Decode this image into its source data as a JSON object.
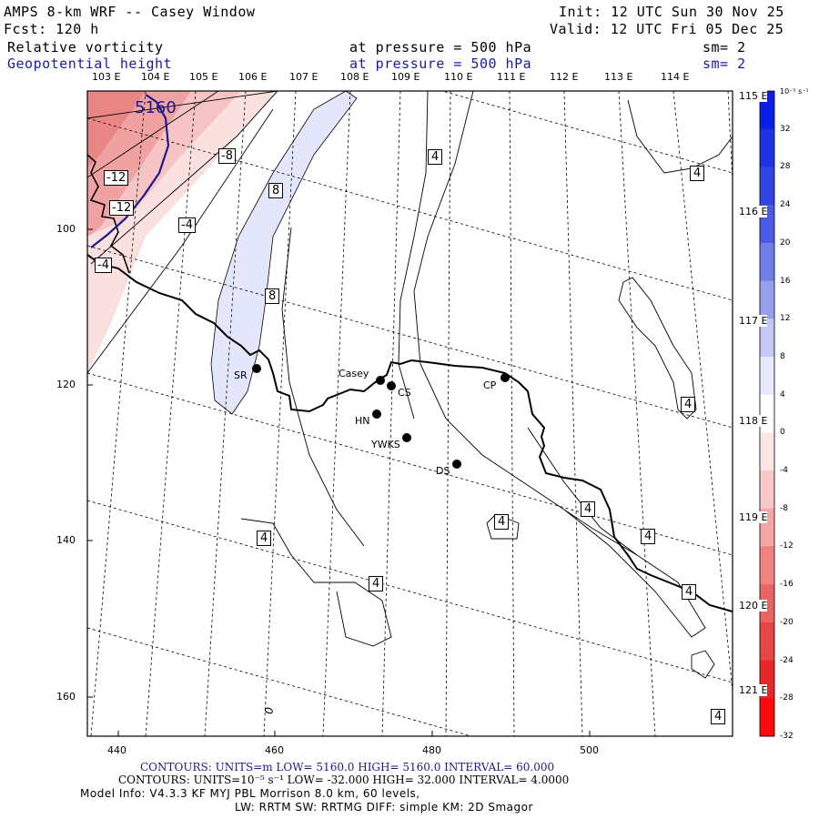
{
  "header": {
    "title": "AMPS 8-km WRF -- Casey Window",
    "fcst": "Fcst:  120 h",
    "init": "Init: 12 UTC Sun 30 Nov 25",
    "valid": "Valid: 12 UTC Fri 05 Dec 25",
    "field1_name": "Relative vorticity",
    "field1_level": "at pressure =  500 hPa",
    "field1_sm": "sm= 2",
    "field2_name": "Geopotential height",
    "field2_level": "at pressure =  500 hPa",
    "field2_sm": "sm= 2"
  },
  "map": {
    "x_ticks": [
      "440",
      "460",
      "480",
      "500"
    ],
    "y_ticks": [
      "100",
      "120",
      "140",
      "160"
    ],
    "lon_labels_top": [
      "103 E",
      "104 E",
      "105 E",
      "106 E",
      "107 E",
      "108 E",
      "109 E",
      "110 E",
      "111 E",
      "112 E",
      "113 E",
      "114 E"
    ],
    "lon_labels_right": [
      "115 E",
      "116 E",
      "117 E",
      "118 E",
      "119 E",
      "120 E",
      "121 E"
    ],
    "stations": [
      {
        "name": "SR"
      },
      {
        "name": "Casey"
      },
      {
        "name": "CS"
      },
      {
        "name": "CP"
      },
      {
        "name": "HN"
      },
      {
        "name": "YWKS"
      },
      {
        "name": "DS"
      }
    ],
    "contour_labels": {
      "height": "5160",
      "vort_neg12a": "-12",
      "vort_neg12b": "-12",
      "vort_neg8": "-8",
      "vort_neg4a": "-4",
      "vort_neg4b": "-4",
      "vort_8a": "8",
      "vort_8b": "8",
      "vort_4": [
        "4",
        "4",
        "4",
        "4",
        "4",
        "4",
        "4",
        "4",
        "4",
        "4"
      ],
      "zero": "0"
    }
  },
  "colorbar": {
    "units": "10⁻⁵ s⁻¹",
    "levels": [
      "32",
      "28",
      "24",
      "20",
      "16",
      "12",
      "8",
      "4",
      "0",
      "-4",
      "-8",
      "-12",
      "-16",
      "-20",
      "-24",
      "-28",
      "-32"
    ],
    "colors": [
      "#0a1ee6",
      "#1e32e6",
      "#3246e6",
      "#4b5ae6",
      "#6e7ee6",
      "#969fee",
      "#c3c8f5",
      "#e6e9fb",
      "#ffffff",
      "#fbe6e6",
      "#f8c8c8",
      "#f5a5a5",
      "#f08282",
      "#eb6464",
      "#e64646",
      "#e62828",
      "#ff0a0a"
    ]
  },
  "footer": {
    "line1": "CONTOURS:  UNITS=m  LOW=  5160.0          HIGH=  5160.0        INTERVAL=   60.000",
    "line2": "CONTOURS:  UNITS=10⁻⁵ s⁻¹   LOW= -32.000          HIGH=  32.000       INTERVAL=   4.0000",
    "line3": "Model Info: V4.3.3    KF       MYJ PBL   Morrison              8.0 km,  60 levels,",
    "line4": "LW: RRTM SW: RRTMG    DIFF: simple KM: 2D Smagor"
  }
}
